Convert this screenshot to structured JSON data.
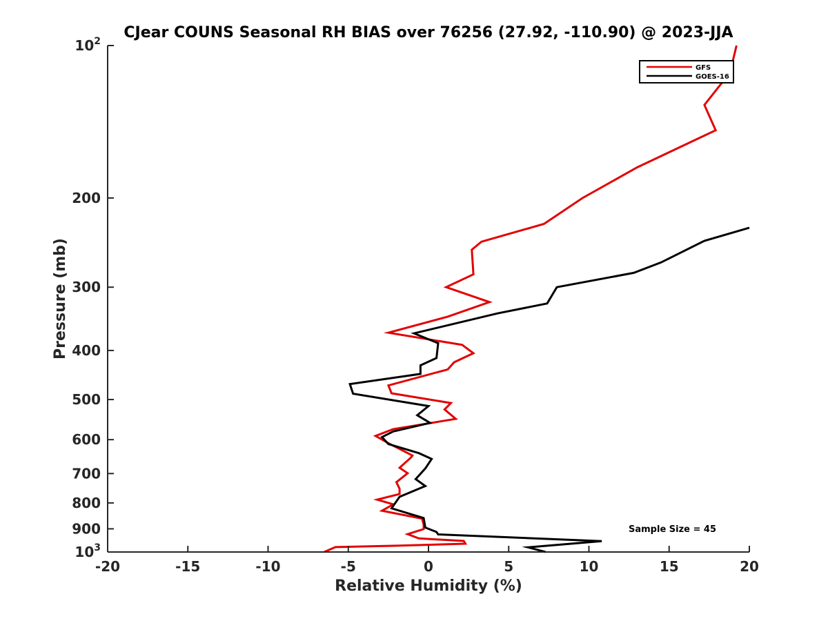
{
  "chart_data": {
    "type": "line",
    "title": "CJear COUNS Seasonal RH BIAS over 76256 (27.92, -110.90) @ 2023-JJA",
    "xlabel": "Relative Humidity (%)",
    "ylabel": "Pressure (mb)",
    "xlim": [
      -20,
      20
    ],
    "ylim": [
      1000,
      100
    ],
    "yscale": "log",
    "x_ticks": [
      -20,
      -15,
      -10,
      -5,
      0,
      5,
      10,
      15,
      20
    ],
    "x_tick_labels": [
      "-20",
      "-15",
      "-10",
      "-5",
      "0",
      "5",
      "10",
      "15",
      "20"
    ],
    "y_ticks": [
      100,
      200,
      300,
      400,
      500,
      600,
      700,
      800,
      900,
      1000
    ],
    "y_tick_labels": [
      {
        "base": "10",
        "exp": "2"
      },
      {
        "base": "200",
        "exp": ""
      },
      {
        "base": "300",
        "exp": ""
      },
      {
        "base": "400",
        "exp": ""
      },
      {
        "base": "500",
        "exp": ""
      },
      {
        "base": "600",
        "exp": ""
      },
      {
        "base": "700",
        "exp": ""
      },
      {
        "base": "800",
        "exp": ""
      },
      {
        "base": "900",
        "exp": ""
      },
      {
        "base": "10",
        "exp": "3"
      }
    ],
    "legend_position": "top-right",
    "annotation": "Sample Size = 45",
    "series": [
      {
        "name": "GFS",
        "color": "#e30000",
        "points": [
          [
            19.2,
            100
          ],
          [
            18.8,
            113
          ],
          [
            17.2,
            131
          ],
          [
            17.9,
            147
          ],
          [
            13.0,
            174
          ],
          [
            9.6,
            200
          ],
          [
            7.2,
            225
          ],
          [
            3.3,
            244
          ],
          [
            2.7,
            253
          ],
          [
            2.8,
            283
          ],
          [
            1.1,
            300
          ],
          [
            3.8,
            321
          ],
          [
            1.2,
            343
          ],
          [
            -2.5,
            369
          ],
          [
            2.1,
            390
          ],
          [
            2.8,
            405
          ],
          [
            1.6,
            422
          ],
          [
            1.2,
            436
          ],
          [
            -2.5,
            469
          ],
          [
            -2.3,
            486
          ],
          [
            1.4,
            508
          ],
          [
            1.0,
            523
          ],
          [
            1.7,
            546
          ],
          [
            -2.2,
            572
          ],
          [
            -3.3,
            590
          ],
          [
            -2.4,
            612
          ],
          [
            -1.0,
            645
          ],
          [
            -1.1,
            651
          ],
          [
            -1.8,
            682
          ],
          [
            -1.3,
            699
          ],
          [
            -2.0,
            728
          ],
          [
            -1.8,
            750
          ],
          [
            -1.8,
            768
          ],
          [
            -3.2,
            788
          ],
          [
            -2.2,
            805
          ],
          [
            -2.9,
            829
          ],
          [
            -0.4,
            859
          ],
          [
            -0.3,
            883
          ],
          [
            -0.3,
            901
          ],
          [
            -1.3,
            922
          ],
          [
            -0.6,
            940
          ],
          [
            2.2,
            951
          ],
          [
            2.3,
            963
          ],
          [
            -2.0,
            972
          ],
          [
            -5.8,
            978
          ],
          [
            -6.5,
            1000
          ]
        ]
      },
      {
        "name": "GOES-16",
        "color": "#000000",
        "points": [
          [
            20.0,
            229
          ],
          [
            17.2,
            243
          ],
          [
            14.5,
            268
          ],
          [
            12.8,
            281
          ],
          [
            8.0,
            300
          ],
          [
            7.4,
            323
          ],
          [
            4.3,
            338
          ],
          [
            -0.9,
            370
          ],
          [
            0.6,
            387
          ],
          [
            0.5,
            414
          ],
          [
            -0.5,
            428
          ],
          [
            -0.5,
            445
          ],
          [
            -4.9,
            466
          ],
          [
            -4.7,
            487
          ],
          [
            0.0,
            515
          ],
          [
            -0.7,
            537
          ],
          [
            0.1,
            556
          ],
          [
            -2.2,
            578
          ],
          [
            -2.9,
            593
          ],
          [
            -2.5,
            612
          ],
          [
            -0.6,
            638
          ],
          [
            0.2,
            655
          ],
          [
            -0.2,
            684
          ],
          [
            -0.8,
            718
          ],
          [
            -0.2,
            741
          ],
          [
            -1.8,
            778
          ],
          [
            -2.3,
            820
          ],
          [
            -0.3,
            857
          ],
          [
            -0.2,
            895
          ],
          [
            0.5,
            913
          ],
          [
            0.6,
            923
          ],
          [
            10.8,
            952
          ],
          [
            6.2,
            979
          ],
          [
            7.3,
            1000
          ]
        ]
      }
    ]
  }
}
